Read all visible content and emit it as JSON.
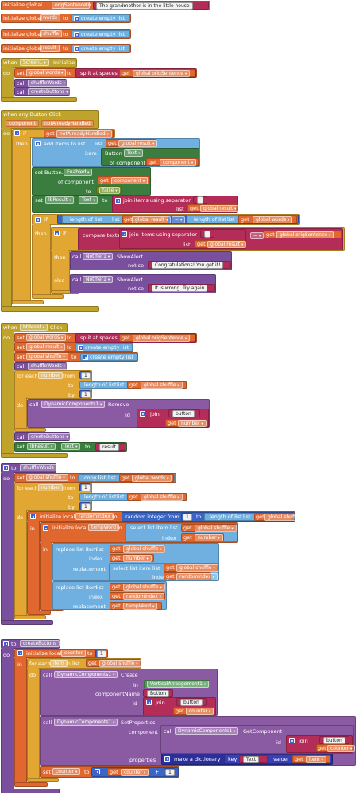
{
  "globals": [
    {
      "kw": "initialize global",
      "name": "origSentence",
      "to": "to",
      "value": "The grandmother is in the little house"
    },
    {
      "kw": "initialize global",
      "name": "words",
      "to": "to",
      "value": "create empty list"
    },
    {
      "kw": "initialize global",
      "name": "shuffle",
      "to": "to",
      "value": "create empty list"
    },
    {
      "kw": "initialize global",
      "name": "result",
      "to": "to",
      "value": "create empty list"
    }
  ],
  "screen1": {
    "when": "when",
    "component": "Screen1",
    "event": "Initialize",
    "do": "do",
    "set": "set",
    "var": "global words",
    "to": "to",
    "split": "split at spaces",
    "get": "get",
    "get_var": "global origSentence",
    "call1": "call",
    "proc1": "shuffleWords",
    "call2": "call",
    "proc2": "createButtons"
  },
  "anyclick": {
    "title": "when any Button.Click",
    "param1": "component",
    "param2": "notAlreadyHandled",
    "do": "do",
    "if": "if",
    "get": "get",
    "cond": "notAlreadyHandled",
    "then": "then",
    "add": "add items to list",
    "list_kw": "list",
    "result": "global result",
    "item_kw": "item",
    "button": "Button",
    "text_prop": "Text",
    "of_component": "of component",
    "component_var": "component",
    "set_btn": "set Button.",
    "enabled": "Enabled",
    "of_component2": "of component",
    "to": "to",
    "false": "false",
    "set_lb": "set",
    "lb": "lbResult",
    "lb_prop": "Text",
    "join_sep": "join items using separator",
    "sep": " ",
    "list_kw2": "list",
    "result2": "global result",
    "if2": "if",
    "length1": "length of list",
    "list_kw3": "list",
    "result3": "global result",
    "eq": "=",
    "length2": "length of list",
    "list_kw4": "list",
    "words": "global words",
    "then2": "then",
    "if3": "if",
    "compare": "compare texts",
    "join_sep2": "join items using separator",
    "sep2": " ",
    "list_kw5": "list",
    "result4": "global result",
    "eq2": "=",
    "orig": "global origSentence",
    "then3": "then",
    "call_n1": "call",
    "notifier1": "Notifier1",
    "show1": "ShowAlert",
    "notice1": "notice",
    "msg1": "Congratulations! You get it!",
    "else": "else",
    "call_n2": "call",
    "notifier2": "Notifier1",
    "show2": "ShowAlert",
    "notice2": "notice",
    "msg2": "It is wrong. Try again"
  },
  "btreset": {
    "when": "when",
    "component": "btReset",
    "event": "Click",
    "do": "do",
    "set1": "set",
    "var1": "global words",
    "to1": "to",
    "split": "split at spaces",
    "get": "get",
    "orig": "global origSentence",
    "set2": "set",
    "var2": "global result",
    "to2": "to",
    "empty2": "create empty list",
    "set3": "set",
    "var3": "global shuffle",
    "to3": "to",
    "empty3": "create empty list",
    "call1": "call",
    "proc1": "shuffleWords",
    "foreach": "for each",
    "number": "number",
    "from": "from",
    "from_v": "1",
    "to_kw": "to",
    "length": "length of list",
    "list_kw": "list",
    "shuffle": "global shuffle",
    "by": "by",
    "by_v": "1",
    "do2": "do",
    "call2": "call",
    "dyn": "DynamicComponents1",
    "remove": "Remove",
    "id": "id",
    "join": "join",
    "button": "button",
    "get2": "get",
    "number_var": "number",
    "call3": "call",
    "proc3": "createButtons",
    "set4": "set",
    "lb": "lbResult",
    "lb_prop": "Text",
    "to4": "to",
    "result_txt": "result"
  },
  "shufflewords": {
    "to": "to",
    "name": "shuffleWords",
    "do": "do",
    "set": "set",
    "var": "global shuffle",
    "to_kw": "to",
    "copy": "copy list",
    "list_kw": "list",
    "get": "get",
    "words": "global words",
    "foreach": "for each",
    "number": "number",
    "from": "from",
    "from_v": "1",
    "to_kw2": "to",
    "length": "length of list",
    "list_kw2": "list",
    "shuffle": "global shuffle",
    "by": "by",
    "by_v": "1",
    "do2": "do",
    "init_local": "initialize local",
    "rindex": "randomIndex",
    "to_kw3": "to",
    "random": "random integer from",
    "r_from": "1",
    "r_to": "to",
    "length2": "length of list",
    "list_kw3": "list",
    "shuffle2": "global shuffle",
    "in1": "in",
    "init_local2": "initialize local",
    "tempword": "tempWord",
    "to_kw4": "to",
    "select": "select list item",
    "list_kw4": "list",
    "shuffle3": "global shuffle",
    "index_kw": "index",
    "number2": "number",
    "in2": "in",
    "replace1": "replace list item",
    "list_kw5": "list",
    "shuffle4": "global shuffle",
    "index_kw2": "index",
    "number3": "number",
    "replacement": "replacement",
    "select2": "select list item",
    "list_kw6": "list",
    "shuffle5": "global shuffle",
    "index_kw3": "index",
    "rindex2": "randomIndex",
    "replace2": "replace list item",
    "list_kw7": "list",
    "shuffle6": "global shuffle",
    "index_kw4": "index",
    "rindex3": "randomIndex",
    "replacement2": "replacement",
    "tempword2": "tempWord"
  },
  "createbuttons": {
    "to": "to",
    "name": "createButtons",
    "do": "do",
    "init_local": "initialize local",
    "counter": "counter",
    "to_kw": "to",
    "counter_v": "1",
    "in": "in",
    "foreach": "for each",
    "item": "item",
    "in_list": "in list",
    "get": "get",
    "shuffle": "global shuffle",
    "do2": "do",
    "call": "call",
    "dyn": "DynamicComponents1",
    "create": "Create",
    "in_kw": "in",
    "va": "VerticalArrangement1",
    "componentname": "componentName",
    "button_type": "Button",
    "id": "id",
    "join": "join",
    "button": "button",
    "counter2": "counter",
    "call2": "call",
    "dyn2": "DynamicComponents1",
    "setprops": "SetProperties",
    "component_kw": "component",
    "call3": "call",
    "dyn3": "DynamicComponents1",
    "getcomp": "GetComponent",
    "id2": "id",
    "join2": "join",
    "button2": "button",
    "counter3": "counter",
    "properties": "properties",
    "dict": "make a dictionary",
    "key": "key",
    "key_v": "Text",
    "value": "value",
    "item2": "item",
    "set": "set",
    "counter4": "counter",
    "to_kw2": "to",
    "counter5": "counter",
    "plus": "+",
    "one": "1"
  }
}
